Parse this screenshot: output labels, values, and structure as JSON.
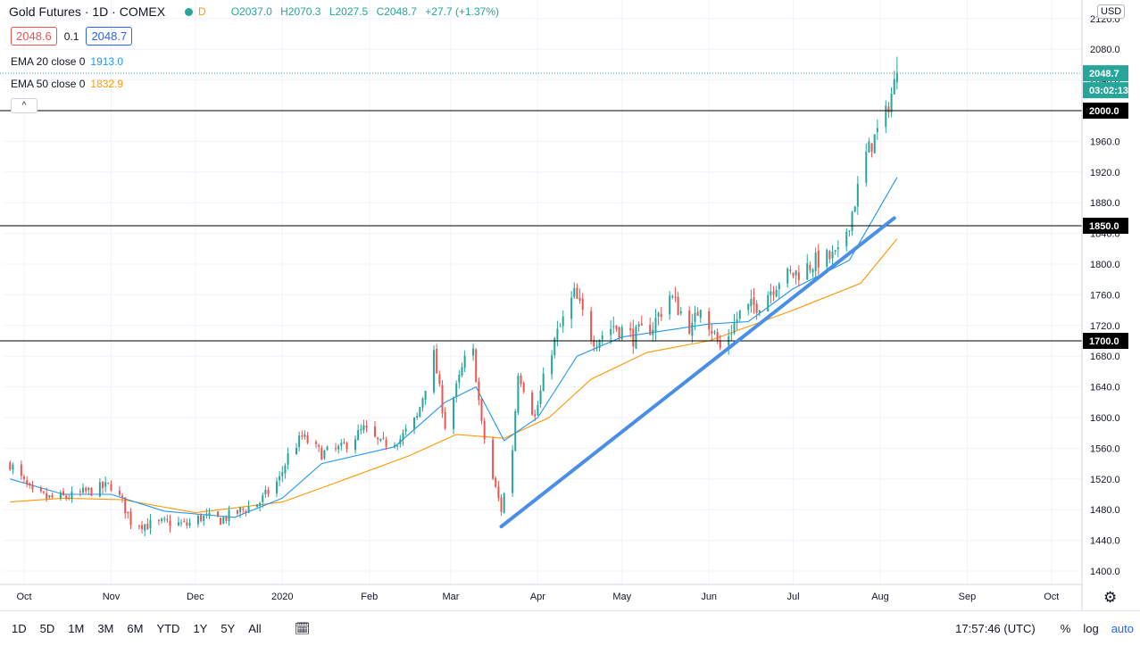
{
  "header": {
    "symbol": "Gold Futures · 1D · COMEX",
    "status_badge": "D",
    "ohlc": {
      "o": "O2037.0",
      "h": "H2070.3",
      "l": "L2027.5",
      "c": "C2048.7",
      "chg": "+27.7 (+1.37%)"
    },
    "sell_price": "2048.6",
    "spread": "0.1",
    "buy_price": "2048.7",
    "ema20": {
      "label": "EMA 20 close 0",
      "value": "1913.0",
      "color": "#2196f3"
    },
    "ema50": {
      "label": "EMA 50 close 0",
      "value": "1832.9",
      "color": "#ff9800"
    },
    "currency": "USD"
  },
  "axis": {
    "price_ticks": [
      "2120.0",
      "2080.0",
      "2040.0",
      "1960.0",
      "1920.0",
      "1880.0",
      "1840.0",
      "1800.0",
      "1760.0",
      "1720.0",
      "1680.0",
      "1640.0",
      "1600.0",
      "1560.0",
      "1520.0",
      "1480.0",
      "1440.0",
      "1400.0"
    ],
    "price_tick_values": [
      2120,
      2080,
      2040,
      1960,
      1920,
      1880,
      1840,
      1800,
      1760,
      1720,
      1680,
      1640,
      1600,
      1560,
      1520,
      1480,
      1440,
      1400
    ],
    "time_ticks": [
      "Oct",
      "Nov",
      "Dec",
      "2020",
      "Feb",
      "Mar",
      "Apr",
      "May",
      "Jun",
      "Jul",
      "Aug",
      "Sep",
      "Oct"
    ],
    "time_tick_dates": [
      "2019-10-01",
      "2019-11-01",
      "2019-12-01",
      "2020-01-01",
      "2020-02-01",
      "2020-03-01",
      "2020-04-01",
      "2020-05-01",
      "2020-06-01",
      "2020-07-01",
      "2020-08-01",
      "2020-09-01",
      "2020-10-01"
    ]
  },
  "labels": {
    "last_price": "2048.7",
    "countdown": "03:02:13",
    "h2000": "2000.0",
    "h1850": "1850.0",
    "h1700": "1700.0"
  },
  "toolbar": {
    "timeframes": [
      "1D",
      "5D",
      "1M",
      "3M",
      "6M",
      "YTD",
      "1Y",
      "5Y",
      "All"
    ],
    "clock": "17:57:46 (UTC)",
    "percent": "%",
    "log": "log",
    "auto": "auto"
  },
  "chart_data": {
    "type": "candlestick",
    "x_start": "2019-09-26",
    "x_range": [
      "2019-09-26",
      "2020-10-10"
    ],
    "ylim": [
      1385,
      2128
    ],
    "colors": {
      "up": "#26a69a",
      "down": "#ef5350",
      "hline": "#000000",
      "trendline": "#4a8fe7",
      "last_price": "#26a69a"
    },
    "horizontal_lines": [
      2000,
      1850,
      1700
    ],
    "trendline": {
      "from": {
        "date": "2020-03-19",
        "price": 1458
      },
      "to": {
        "date": "2020-08-06",
        "price": 1860
      }
    },
    "anchors": [
      [
        "2019-09-26",
        1540
      ],
      [
        "2019-10-01",
        1515
      ],
      [
        "2019-10-04",
        1500
      ],
      [
        "2019-10-10",
        1495
      ],
      [
        "2019-10-18",
        1497
      ],
      [
        "2019-10-25",
        1505
      ],
      [
        "2019-11-01",
        1512
      ],
      [
        "2019-11-05",
        1490
      ],
      [
        "2019-11-08",
        1465
      ],
      [
        "2019-11-14",
        1460
      ],
      [
        "2019-11-22",
        1463
      ],
      [
        "2019-11-28",
        1460
      ],
      [
        "2019-12-03",
        1470
      ],
      [
        "2019-12-10",
        1467
      ],
      [
        "2019-12-17",
        1478
      ],
      [
        "2019-12-24",
        1490
      ],
      [
        "2019-12-31",
        1520
      ],
      [
        "2020-01-03",
        1550
      ],
      [
        "2020-01-08",
        1575
      ],
      [
        "2020-01-15",
        1553
      ],
      [
        "2020-01-22",
        1560
      ],
      [
        "2020-01-30",
        1585
      ],
      [
        "2020-02-05",
        1565
      ],
      [
        "2020-02-12",
        1572
      ],
      [
        "2020-02-18",
        1600
      ],
      [
        "2020-02-24",
        1682
      ],
      [
        "2020-02-28",
        1590
      ],
      [
        "2020-03-06",
        1675
      ],
      [
        "2020-03-09",
        1685
      ],
      [
        "2020-03-12",
        1590
      ],
      [
        "2020-03-16",
        1520
      ],
      [
        "2020-03-19",
        1480
      ],
      [
        "2020-03-23",
        1560
      ],
      [
        "2020-03-25",
        1660
      ],
      [
        "2020-03-31",
        1600
      ],
      [
        "2020-04-03",
        1650
      ],
      [
        "2020-04-07",
        1700
      ],
      [
        "2020-04-14",
        1760
      ],
      [
        "2020-04-21",
        1700
      ],
      [
        "2020-04-28",
        1720
      ],
      [
        "2020-05-05",
        1705
      ],
      [
        "2020-05-12",
        1720
      ],
      [
        "2020-05-18",
        1760
      ],
      [
        "2020-05-26",
        1715
      ],
      [
        "2020-05-29",
        1750
      ],
      [
        "2020-06-05",
        1690
      ],
      [
        "2020-06-12",
        1735
      ],
      [
        "2020-06-19",
        1750
      ],
      [
        "2020-06-26",
        1780
      ],
      [
        "2020-07-03",
        1790
      ],
      [
        "2020-07-10",
        1805
      ],
      [
        "2020-07-17",
        1810
      ],
      [
        "2020-07-22",
        1868
      ],
      [
        "2020-07-27",
        1942
      ],
      [
        "2020-08-03",
        1995
      ],
      [
        "2020-08-07",
        2048.7
      ]
    ],
    "ema20_points": [
      [
        "2019-09-26",
        1520
      ],
      [
        "2019-10-15",
        1500
      ],
      [
        "2019-11-01",
        1500
      ],
      [
        "2019-11-20",
        1478
      ],
      [
        "2019-12-15",
        1470
      ],
      [
        "2020-01-01",
        1495
      ],
      [
        "2020-01-15",
        1540
      ],
      [
        "2020-02-10",
        1562
      ],
      [
        "2020-02-28",
        1620
      ],
      [
        "2020-03-10",
        1640
      ],
      [
        "2020-03-20",
        1570
      ],
      [
        "2020-04-01",
        1600
      ],
      [
        "2020-04-15",
        1680
      ],
      [
        "2020-05-01",
        1705
      ],
      [
        "2020-06-01",
        1722
      ],
      [
        "2020-06-15",
        1725
      ],
      [
        "2020-07-01",
        1768
      ],
      [
        "2020-07-21",
        1805
      ],
      [
        "2020-08-07",
        1913
      ]
    ],
    "ema50_points": [
      [
        "2019-09-26",
        1490
      ],
      [
        "2019-10-15",
        1495
      ],
      [
        "2019-11-05",
        1493
      ],
      [
        "2019-12-01",
        1476
      ],
      [
        "2020-01-01",
        1490
      ],
      [
        "2020-01-20",
        1515
      ],
      [
        "2020-02-15",
        1550
      ],
      [
        "2020-03-03",
        1578
      ],
      [
        "2020-03-20",
        1573
      ],
      [
        "2020-04-05",
        1600
      ],
      [
        "2020-04-20",
        1650
      ],
      [
        "2020-05-10",
        1685
      ],
      [
        "2020-06-01",
        1700
      ],
      [
        "2020-07-01",
        1740
      ],
      [
        "2020-07-25",
        1775
      ],
      [
        "2020-08-07",
        1833
      ]
    ]
  }
}
